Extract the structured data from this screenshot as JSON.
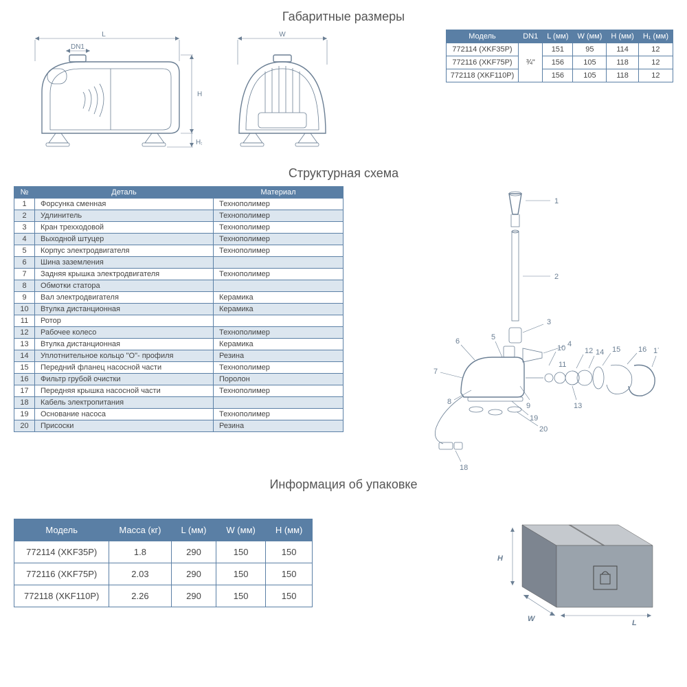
{
  "titles": {
    "dimensions": "Габаритные размеры",
    "structure": "Структурная схема",
    "packaging": "Информация об упаковке"
  },
  "dim_labels": {
    "L": "L",
    "DN1": "DN1",
    "W": "W",
    "H": "H",
    "H1": "H₁"
  },
  "dim_table": {
    "headers": [
      "Модель",
      "DN1",
      "L (мм)",
      "W (мм)",
      "H (мм)",
      "H₁ (мм)"
    ],
    "dn_shared": "¾\"",
    "rows": [
      {
        "model": "772114 (XKF35P)",
        "L": "151",
        "W": "95",
        "H": "114",
        "H1": "12"
      },
      {
        "model": "772116 (XKF75P)",
        "L": "156",
        "W": "105",
        "H": "118",
        "H1": "12"
      },
      {
        "model": "772118 (XKF110P)",
        "L": "156",
        "W": "105",
        "H": "118",
        "H1": "12"
      }
    ]
  },
  "parts_table": {
    "headers": [
      "№",
      "Деталь",
      "Материал"
    ],
    "rows": [
      {
        "n": "1",
        "part": "Форсунка сменная",
        "mat": "Технополимер"
      },
      {
        "n": "2",
        "part": "Удлинитель",
        "mat": "Технополимер"
      },
      {
        "n": "3",
        "part": "Кран трехходовой",
        "mat": "Технополимер"
      },
      {
        "n": "4",
        "part": "Выходной штуцер",
        "mat": "Технополимер"
      },
      {
        "n": "5",
        "part": "Корпус электродвигателя",
        "mat": "Технополимер"
      },
      {
        "n": "6",
        "part": "Шина заземления",
        "mat": ""
      },
      {
        "n": "7",
        "part": "Задняя крышка электродвигателя",
        "mat": "Технополимер"
      },
      {
        "n": "8",
        "part": "Обмотки статора",
        "mat": ""
      },
      {
        "n": "9",
        "part": "Вал электродвигателя",
        "mat": "Керамика"
      },
      {
        "n": "10",
        "part": "Втулка дистанционная",
        "mat": "Керамика"
      },
      {
        "n": "11",
        "part": "Ротор",
        "mat": ""
      },
      {
        "n": "12",
        "part": "Рабочее колесо",
        "mat": "Технополимер"
      },
      {
        "n": "13",
        "part": "Втулка дистанционная",
        "mat": "Керамика"
      },
      {
        "n": "14",
        "part": "Уплотнительное кольцо \"О\"- профиля",
        "mat": "Резина"
      },
      {
        "n": "15",
        "part": "Передний фланец насосной части",
        "mat": "Технополимер"
      },
      {
        "n": "16",
        "part": "Фильтр грубой очистки",
        "mat": "Поролон"
      },
      {
        "n": "17",
        "part": "Передняя крышка насосной части",
        "mat": "Технополимер"
      },
      {
        "n": "18",
        "part": "Кабель электропитания",
        "mat": ""
      },
      {
        "n": "19",
        "part": "Основание насоса",
        "mat": "Технополимер"
      },
      {
        "n": "20",
        "part": "Присоски",
        "mat": "Резина"
      }
    ]
  },
  "pack_table": {
    "headers": [
      "Модель",
      "Масса (кг)",
      "L (мм)",
      "W (мм)",
      "H (мм)"
    ],
    "rows": [
      {
        "model": "772114 (XKF35P)",
        "mass": "1.8",
        "L": "290",
        "W": "150",
        "H": "150"
      },
      {
        "model": "772116 (XKF75P)",
        "mass": "2.03",
        "L": "290",
        "W": "150",
        "H": "150"
      },
      {
        "model": "772118 (XKF110P)",
        "mass": "2.26",
        "L": "290",
        "W": "150",
        "H": "150"
      }
    ]
  },
  "box_labels": {
    "W": "W",
    "L": "L",
    "H": "H"
  },
  "colors": {
    "header_bg": "#5a7fa5",
    "header_fg": "#ffffff",
    "border": "#5a7fa5",
    "alt_row": "#dce6ef",
    "drawing_stroke": "#6b7f94"
  }
}
